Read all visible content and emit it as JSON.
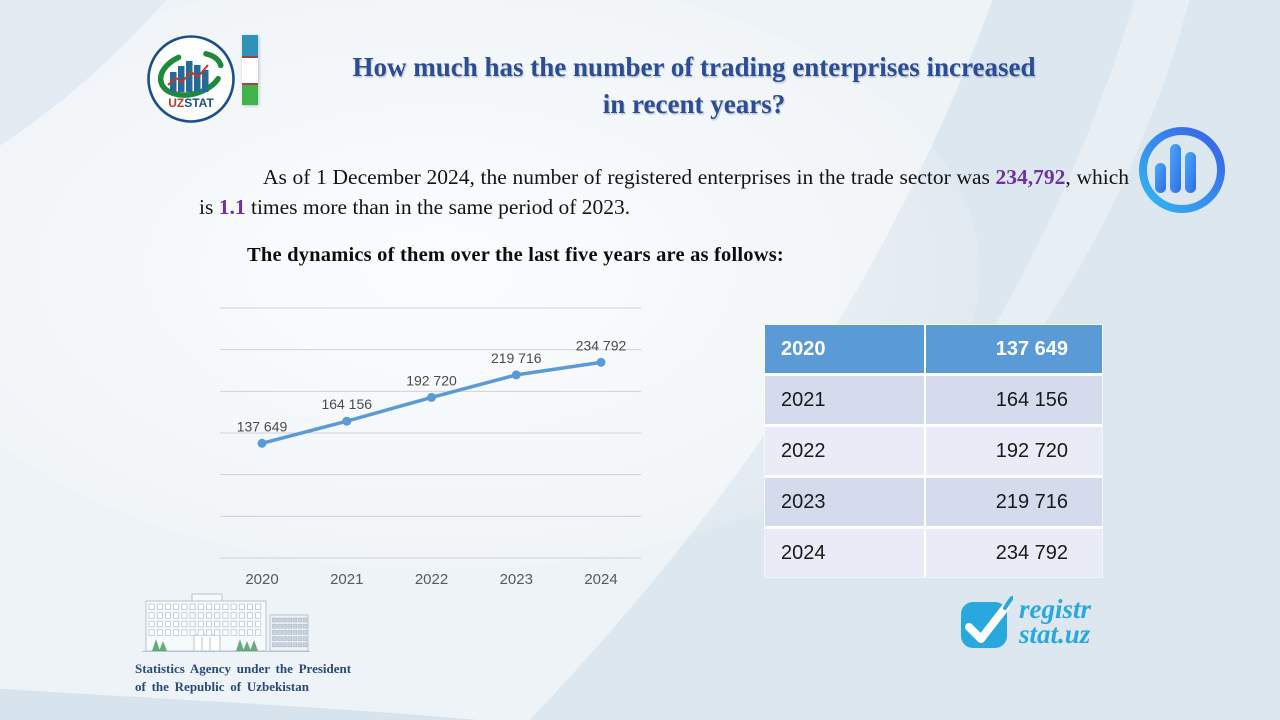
{
  "header": {
    "logo_uz": "UZ",
    "logo_stat": "STAT",
    "title_line1": "How much has the number of trading enterprises increased",
    "title_line2": "in recent years?"
  },
  "intro": {
    "part1": "As of 1 December 2024, the number of registered enterprises in the trade sector was ",
    "value": "234,792",
    "part2": ", which is ",
    "ratio": "1.1",
    "part3": " times more than in the same period of 2023."
  },
  "subtitle": "The dynamics of them over the last five years are as follows:",
  "chart_data": {
    "type": "line",
    "categories": [
      "2020",
      "2021",
      "2022",
      "2023",
      "2024"
    ],
    "values": [
      137649,
      164156,
      192720,
      219716,
      234792
    ],
    "data_labels": [
      "137 649",
      "164 156",
      "192 720",
      "219 716",
      "234 792"
    ],
    "title": "",
    "xlabel": "",
    "ylabel": "",
    "ylim": [
      0,
      300000
    ],
    "gridline_step": 50000,
    "grid": "horizontal-only",
    "legend": "none",
    "line_color": "#5b9bd5",
    "marker": "circle",
    "label_color": "#4a4a4a",
    "axis_label_color": "#595959"
  },
  "table": {
    "rows": [
      {
        "year": "2020",
        "value": "137 649",
        "header": true
      },
      {
        "year": "2021",
        "value": "164 156"
      },
      {
        "year": "2022",
        "value": "192 720"
      },
      {
        "year": "2023",
        "value": "219 716"
      },
      {
        "year": "2024",
        "value": "234 792"
      }
    ],
    "header_bg": "#5b9bd5",
    "row_alt1": "#d4dbed",
    "row_alt2": "#e9ecf6"
  },
  "footer": {
    "agency_line1": "Statistics Agency under the President",
    "agency_line2": "of the Republic of Uzbekistan",
    "registr_line1": "registr",
    "registr_line2": "stat.uz"
  },
  "colors": {
    "title_navy": "#2c4d94",
    "accent_purple": "#7030a0",
    "registr_blue": "#29a8e0",
    "flag_blue": "#2e93b9",
    "flag_green": "#3db54a"
  }
}
